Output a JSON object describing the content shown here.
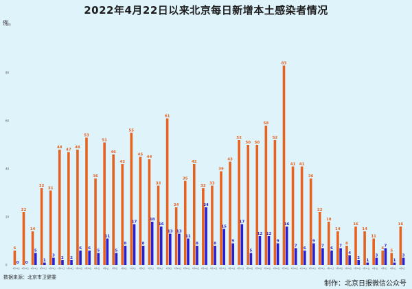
{
  "title": "2022年4月22日以来北京每日新增本土感染者情况",
  "source": "数据来源：北京市卫健委",
  "credit": "制作：北京日报微信公众号",
  "colors": {
    "orange": "#e8621f",
    "blue": "#2a1fd0",
    "background": "#dff3fb"
  },
  "chart_data": {
    "type": "bar",
    "ylabel": "例",
    "ylim": [
      0,
      100
    ],
    "yticks": [
      0,
      20,
      40,
      60,
      80,
      100
    ],
    "grid": false,
    "categories": [
      "4月22日",
      "4月23日",
      "4月24日",
      "4月25日",
      "4月26日",
      "4月27日",
      "4月28日",
      "4月29日",
      "4月30日",
      "5月1日",
      "5月2日",
      "5月3日",
      "5月4日",
      "5月5日",
      "5月6日",
      "5月7日",
      "5月8日",
      "5月9日",
      "5月10日",
      "5月11日",
      "5月12日",
      "5月13日",
      "5月14日",
      "5月15日",
      "5月16日",
      "5月17日",
      "5月18日",
      "5月19日",
      "5月20日",
      "5月21日",
      "5月22日",
      "5月23日",
      "5月24日",
      "5月25日",
      "5月26日",
      "5月27日",
      "5月28日",
      "5月29日",
      "5月30日",
      "5月31日",
      "6月1日",
      "6月2日",
      "6月3日",
      "6月4日"
    ],
    "series": [
      {
        "color": "#e8621f",
        "values": [
          6,
          22,
          14,
          32,
          31,
          48,
          47,
          48,
          53,
          36,
          51,
          46,
          42,
          55,
          45,
          44,
          33,
          61,
          24,
          35,
          42,
          32,
          33,
          39,
          43,
          52,
          50,
          50,
          58,
          52,
          83,
          41,
          41,
          36,
          22,
          18,
          14,
          8,
          16,
          14,
          11,
          6,
          5,
          16
        ]
      },
      {
        "color": "#2a1fd0",
        "values": [
          0,
          0,
          5,
          1,
          3,
          2,
          2,
          6,
          6,
          5,
          11,
          5,
          8,
          17,
          8,
          18,
          16,
          13,
          13,
          11,
          8,
          24,
          8,
          15,
          9,
          17,
          5,
          12,
          12,
          9,
          16,
          7,
          6,
          9,
          7,
          6,
          7,
          4,
          2,
          1,
          3,
          7,
          1,
          3
        ]
      }
    ]
  }
}
